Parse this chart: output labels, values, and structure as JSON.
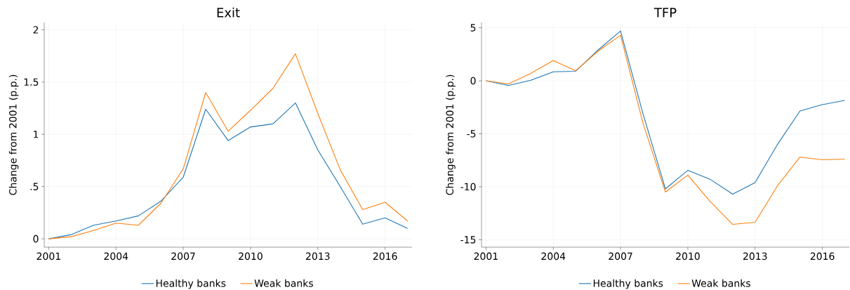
{
  "chart_data": [
    {
      "type": "line",
      "title": "Exit",
      "ylabel": "Change from 2001 (p.p.)",
      "x": [
        2001,
        2002,
        2003,
        2004,
        2005,
        2006,
        2007,
        2008,
        2009,
        2010,
        2011,
        2012,
        2013,
        2014,
        2015,
        2016,
        2017
      ],
      "series": [
        {
          "name": "Healthy banks",
          "color": "#1f77b4",
          "values": [
            0,
            0.04,
            0.13,
            0.17,
            0.22,
            0.36,
            0.59,
            1.24,
            0.94,
            1.07,
            1.1,
            1.3,
            0.85,
            0.5,
            0.14,
            0.2,
            0.1
          ]
        },
        {
          "name": "Weak banks",
          "color": "#ff7f0e",
          "values": [
            0,
            0.02,
            0.08,
            0.15,
            0.13,
            0.34,
            0.67,
            1.4,
            1.03,
            1.23,
            1.44,
            1.77,
            1.2,
            0.66,
            0.28,
            0.35,
            0.17
          ]
        }
      ],
      "xlim": [
        2000.8,
        2017.2
      ],
      "xticks": [
        2001,
        2004,
        2007,
        2010,
        2013,
        2016
      ],
      "ylim": [
        -0.08,
        2.07
      ],
      "yticks": [
        0,
        {
          "value": 0.5,
          "label": ".5"
        },
        1,
        1.5,
        2
      ],
      "grid": true,
      "legend": "bottom",
      "marker": "none",
      "line_style": "solid"
    },
    {
      "type": "line",
      "title": "TFP",
      "ylabel": "Change from 2001 (p.p.)",
      "x": [
        2001,
        2002,
        2003,
        2004,
        2005,
        2006,
        2007,
        2008,
        2009,
        2010,
        2011,
        2012,
        2013,
        2014,
        2015,
        2016,
        2017
      ],
      "series": [
        {
          "name": "Healthy banks",
          "color": "#1f77b4",
          "values": [
            0,
            -0.45,
            0.05,
            0.85,
            0.9,
            2.9,
            4.7,
            -3.1,
            -10.2,
            -8.45,
            -9.3,
            -10.7,
            -9.6,
            -6.0,
            -2.85,
            -2.25,
            -1.85
          ]
        },
        {
          "name": "Weak banks",
          "color": "#ff7f0e",
          "values": [
            0,
            -0.3,
            0.7,
            1.9,
            0.95,
            2.8,
            4.3,
            -4.0,
            -10.5,
            -8.9,
            -11.4,
            -13.55,
            -13.35,
            -9.9,
            -7.2,
            -7.45,
            -7.4
          ]
        }
      ],
      "xlim": [
        2000.8,
        2017.2
      ],
      "xticks": [
        2001,
        2004,
        2007,
        2010,
        2013,
        2016
      ],
      "ylim": [
        -15.7,
        5.5
      ],
      "yticks": [
        -15,
        -10,
        -5,
        0,
        5
      ],
      "grid": true,
      "legend": "bottom",
      "marker": "none",
      "line_style": "solid"
    }
  ]
}
